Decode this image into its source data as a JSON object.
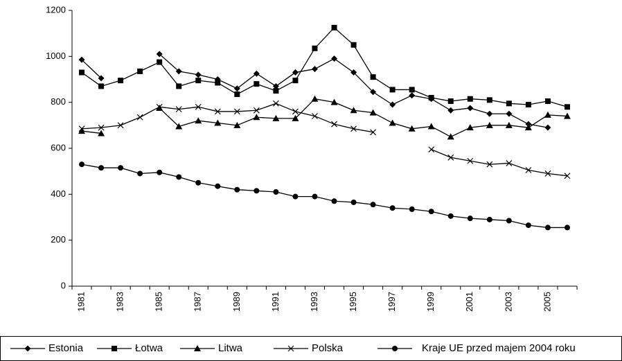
{
  "chart_data": {
    "type": "line",
    "categories": [
      "1981",
      null,
      "1983",
      null,
      "1985",
      null,
      "1987",
      null,
      "1989",
      null,
      "1991",
      null,
      "1993",
      null,
      "1995",
      null,
      "1997",
      null,
      "1999",
      null,
      "2001",
      null,
      "2003",
      null,
      "2005",
      null
    ],
    "series": [
      {
        "name": "Estonia",
        "color": "#000000",
        "marker": "diamond",
        "values": [
          985,
          905,
          null,
          null,
          1010,
          935,
          920,
          900,
          860,
          925,
          870,
          930,
          945,
          990,
          930,
          845,
          790,
          830,
          815,
          765,
          775,
          750,
          750,
          705,
          690,
          null
        ]
      },
      {
        "name": "Łotwa",
        "color": "#000000",
        "marker": "square",
        "values": [
          930,
          870,
          895,
          935,
          975,
          870,
          895,
          885,
          835,
          880,
          850,
          895,
          1035,
          1125,
          1050,
          910,
          855,
          855,
          820,
          805,
          815,
          810,
          795,
          790,
          805,
          780
        ]
      },
      {
        "name": "Litwa",
        "color": "#000000",
        "marker": "triangle",
        "values": [
          675,
          665,
          null,
          null,
          775,
          695,
          720,
          710,
          700,
          735,
          730,
          730,
          815,
          800,
          765,
          755,
          710,
          685,
          695,
          650,
          690,
          700,
          700,
          690,
          745,
          740
        ]
      },
      {
        "name": "Polska",
        "color": "#000000",
        "marker": "x",
        "values": [
          685,
          690,
          700,
          735,
          780,
          770,
          780,
          760,
          760,
          765,
          795,
          760,
          740,
          705,
          685,
          670,
          null,
          null,
          595,
          560,
          545,
          530,
          535,
          505,
          490,
          480
        ]
      },
      {
        "name": "Kraje UE przed majem 2004 roku",
        "color": "#000000",
        "marker": "circle",
        "values": [
          530,
          515,
          515,
          490,
          495,
          475,
          450,
          435,
          420,
          415,
          410,
          390,
          390,
          370,
          365,
          355,
          340,
          335,
          325,
          305,
          295,
          290,
          285,
          265,
          255,
          255
        ]
      }
    ],
    "ylim": [
      0,
      1200
    ],
    "yticks": [
      0,
      200,
      400,
      600,
      800,
      1000,
      1200
    ],
    "grid": false,
    "legend": "bottom"
  }
}
